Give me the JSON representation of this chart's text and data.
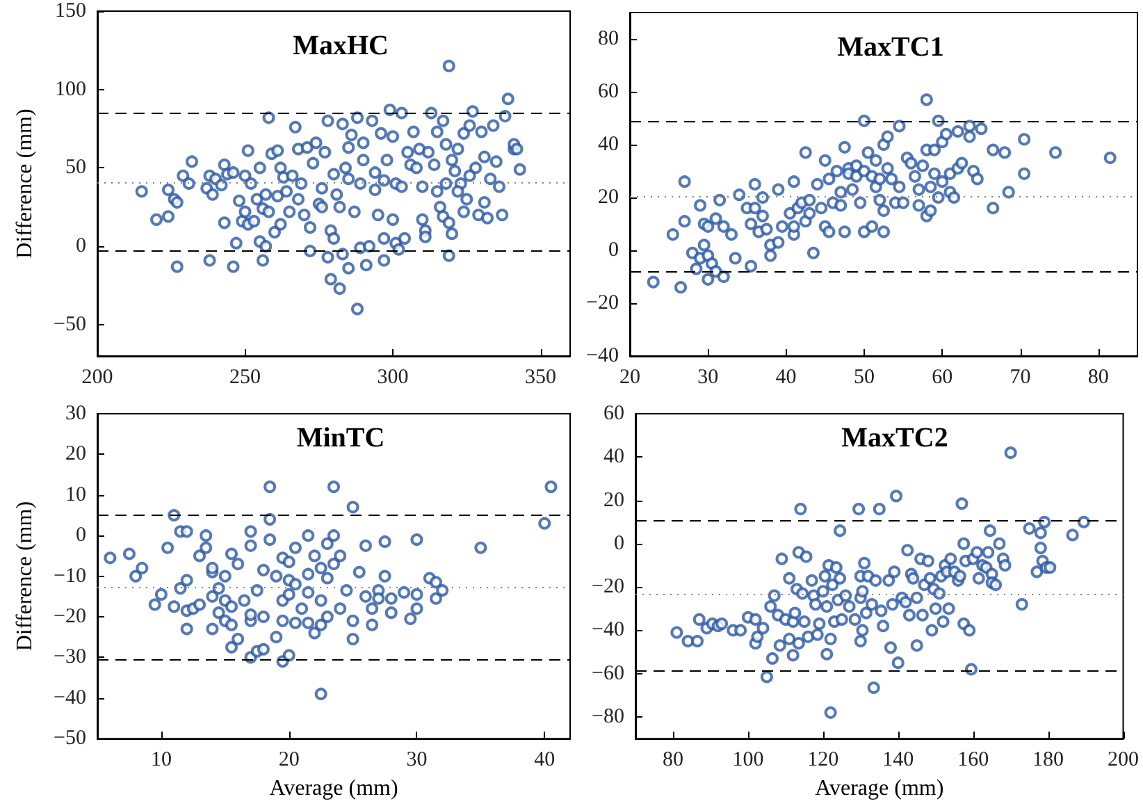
{
  "chart_data": [
    {
      "type": "scatter",
      "title": "MaxHC",
      "ylabel": "Difference (mm)",
      "marker": "circle",
      "grid": false,
      "xlim": [
        200,
        360
      ],
      "xticks": [
        200,
        250,
        300,
        350
      ],
      "ylim": [
        -70,
        150
      ],
      "yticks": [
        -50,
        0,
        50,
        100,
        150
      ],
      "ref_lines": [
        {
          "axis": "y",
          "value": 85,
          "line_style": "dashed",
          "color": "#000000"
        },
        {
          "axis": "y",
          "value": 41,
          "line_style": "dotted",
          "color": "#808080"
        },
        {
          "axis": "y",
          "value": -3,
          "line_style": "dashed",
          "color": "#000000"
        }
      ],
      "series": [
        {
          "color": "#2957a4",
          "x": [
            215,
            220,
            224,
            224,
            226,
            227,
            227,
            229,
            231,
            232,
            237,
            238,
            238,
            239,
            240,
            242,
            243,
            243,
            244,
            246,
            246,
            247,
            248,
            249,
            250,
            250,
            251,
            251,
            252,
            253,
            254,
            255,
            255,
            256,
            256,
            257,
            257,
            258,
            258,
            259,
            260,
            261,
            261,
            262,
            262,
            263,
            264,
            265,
            266,
            267,
            268,
            269,
            270,
            271,
            272,
            272,
            273,
            274,
            275,
            276,
            277,
            278,
            278,
            279,
            279,
            280,
            280,
            281,
            282,
            282,
            283,
            283,
            284,
            285,
            285,
            286,
            287,
            288,
            288,
            289,
            289,
            290,
            290,
            291,
            292,
            293,
            294,
            294,
            295,
            296,
            297,
            297,
            298,
            299,
            300,
            300,
            301,
            301,
            302,
            303,
            303,
            304,
            305,
            306,
            307,
            308,
            309,
            310,
            310,
            311,
            311,
            312,
            313,
            314,
            315,
            315,
            316,
            317,
            317,
            318,
            318,
            319,
            319,
            319,
            320,
            320,
            321,
            322,
            323,
            324,
            324,
            325,
            326,
            327,
            328,
            329,
            330,
            331,
            331,
            332,
            333,
            334,
            335,
            336,
            337,
            338,
            339,
            341,
            341,
            342,
            343,
            326,
            322,
            297,
            285,
            276,
            268
          ],
          "values": [
            35,
            17,
            19,
            36,
            30,
            -13,
            28,
            45,
            40,
            54,
            37,
            45,
            -9,
            33,
            43,
            39,
            52,
            15,
            46,
            47,
            -13,
            2,
            29,
            16,
            22,
            45,
            14,
            61,
            40,
            16,
            30,
            50,
            3,
            -9,
            24,
            33,
            0,
            82,
            22,
            59,
            9,
            32,
            61,
            50,
            14,
            44,
            35,
            22,
            45,
            76,
            62,
            40,
            20,
            63,
            12,
            -3,
            53,
            66,
            27,
            37,
            60,
            80,
            -7,
            -21,
            10,
            46,
            5,
            33,
            25,
            -27,
            78,
            -5,
            50,
            63,
            -14,
            71,
            22,
            82,
            -40,
            -1,
            40,
            55,
            66,
            -12,
            0,
            80,
            47,
            36,
            20,
            72,
            5,
            -9,
            55,
            87,
            17,
            70,
            2,
            40,
            -2,
            38,
            85,
            5,
            60,
            52,
            73,
            50,
            62,
            38,
            17,
            10,
            6,
            60,
            85,
            52,
            35,
            73,
            25,
            80,
            19,
            40,
            65,
            15,
            -6,
            115,
            8,
            55,
            48,
            62,
            40,
            72,
            22,
            30,
            77,
            86,
            50,
            20,
            73,
            57,
            28,
            18,
            43,
            77,
            54,
            38,
            20,
            83,
            94,
            62,
            65,
            62,
            49,
            45,
            35,
            42,
            43,
            25,
            30
          ]
        }
      ]
    },
    {
      "type": "scatter",
      "title": "MaxTC1",
      "marker": "circle",
      "grid": false,
      "xlim": [
        20,
        85
      ],
      "xticks": [
        20,
        30,
        40,
        50,
        60,
        70,
        80
      ],
      "ylim": [
        -40,
        90
      ],
      "yticks": [
        -40,
        -20,
        0,
        20,
        40,
        60,
        80
      ],
      "ref_lines": [
        {
          "axis": "y",
          "value": 49,
          "line_style": "dashed",
          "color": "#000000"
        },
        {
          "axis": "y",
          "value": 20.5,
          "line_style": "dotted",
          "color": "#808080"
        },
        {
          "axis": "y",
          "value": -8,
          "line_style": "dashed",
          "color": "#000000"
        }
      ],
      "series": [
        {
          "color": "#2957a4",
          "x": [
            23,
            25.5,
            26.5,
            27,
            27,
            28,
            28.5,
            29,
            29,
            29.5,
            29.5,
            30,
            30,
            30,
            30.5,
            31,
            31,
            31.5,
            32,
            32,
            33,
            33.5,
            34,
            35,
            35.5,
            35.5,
            36,
            36,
            36.5,
            37,
            37,
            37.5,
            38,
            38,
            39,
            39,
            39.5,
            40.5,
            41,
            41,
            41,
            41.5,
            42,
            42.5,
            42.5,
            43,
            43,
            43.5,
            44,
            44.5,
            45,
            45,
            45.5,
            45.5,
            46,
            46.5,
            47,
            47,
            47.5,
            47.5,
            48,
            48,
            48.5,
            49,
            49,
            49.5,
            50,
            50,
            50,
            50.5,
            51,
            51,
            51.5,
            51.5,
            52,
            52,
            52.5,
            52.5,
            52.5,
            53,
            53,
            53.5,
            54,
            54.5,
            54.5,
            55,
            55.5,
            56,
            56.5,
            57,
            57,
            57.5,
            58,
            58,
            58,
            58.5,
            58.5,
            59,
            59,
            59.5,
            59.5,
            60,
            60,
            60.5,
            61,
            61,
            61.5,
            62,
            62,
            62.5,
            63.5,
            63.5,
            64,
            64.5,
            65,
            66.5,
            66.5,
            68,
            68.5,
            70.5,
            70.5,
            74.5,
            81.5
          ],
          "values": [
            -12,
            6,
            -14,
            11,
            26,
            -1,
            -7,
            17,
            -3,
            2,
            10,
            -11,
            9,
            -2,
            -5,
            12,
            -8,
            19,
            9,
            -10,
            6,
            -3,
            21,
            16,
            -6,
            10,
            25,
            16,
            7,
            20,
            13,
            8,
            -2,
            2,
            3,
            23,
            9,
            14,
            6,
            26,
            9,
            16,
            18,
            11,
            37,
            14,
            19,
            -1,
            25,
            16,
            34,
            9,
            7,
            27,
            18,
            30,
            22,
            17,
            39,
            7,
            31,
            29,
            23,
            32,
            28,
            18,
            30,
            7,
            49,
            37,
            28,
            9,
            24,
            34,
            27,
            19,
            40,
            15,
            7,
            43,
            31,
            27,
            18,
            24,
            47,
            18,
            35,
            33,
            28,
            17,
            23,
            32,
            13,
            57,
            38,
            24,
            15,
            29,
            38,
            49,
            20,
            41,
            26,
            44,
            29,
            22,
            20,
            31,
            45,
            33,
            47,
            43,
            30,
            27,
            46,
            38,
            16,
            37,
            22,
            42,
            29,
            37,
            35
          ]
        }
      ]
    },
    {
      "type": "scatter",
      "title": "MinTC",
      "xlabel": "Average (mm)",
      "ylabel": "Difference (mm)",
      "marker": "circle",
      "grid": false,
      "xlim": [
        5,
        42
      ],
      "xticks": [
        10,
        20,
        30,
        40
      ],
      "ylim": [
        -50,
        30
      ],
      "yticks": [
        -50,
        -40,
        -30,
        -20,
        -10,
        0,
        10,
        20,
        30
      ],
      "ref_lines": [
        {
          "axis": "y",
          "value": 5,
          "line_style": "dashed",
          "color": "#000000"
        },
        {
          "axis": "y",
          "value": -12.8,
          "line_style": "dotted",
          "color": "#808080"
        },
        {
          "axis": "y",
          "value": -30.5,
          "line_style": "dashed",
          "color": "#000000"
        }
      ],
      "series": [
        {
          "color": "#2957a4",
          "x": [
            6,
            7.5,
            8,
            8.5,
            9.5,
            10,
            10.5,
            11,
            11,
            11.5,
            11.5,
            12,
            12,
            12,
            12,
            12.5,
            13,
            13,
            13.5,
            13.5,
            14,
            14,
            14,
            14,
            14.5,
            14.5,
            15,
            15,
            15,
            15.5,
            15.5,
            15.5,
            15.5,
            16,
            16,
            16.5,
            17,
            17,
            17,
            17,
            17,
            17.5,
            17.5,
            18,
            18,
            18,
            18.5,
            18.5,
            18.5,
            19,
            19,
            19.5,
            19.5,
            19.5,
            19.5,
            20,
            20,
            20,
            20,
            20.5,
            20.5,
            20.5,
            21,
            21.5,
            21.5,
            21.5,
            21.5,
            22,
            22,
            22.5,
            22.5,
            22.5,
            22.5,
            23,
            23,
            23,
            23.5,
            23.5,
            23.5,
            24,
            24,
            24.5,
            25,
            25,
            25,
            25.5,
            26,
            26,
            26.5,
            26.5,
            27,
            27,
            27.5,
            27.5,
            28,
            28,
            29,
            29.5,
            30,
            30,
            30,
            31,
            31.5,
            31.5,
            32,
            35,
            40,
            40.5
          ],
          "values": [
            -5.5,
            -4.5,
            -10,
            -8,
            -17,
            -14.5,
            -3,
            -17.5,
            5,
            1,
            -13,
            -11,
            1,
            -18.5,
            -23,
            -18,
            -17,
            -5,
            0,
            -3,
            -9,
            -15,
            -23,
            -8,
            -13,
            -19,
            -16,
            -10,
            -21,
            -27.5,
            -22,
            -17.5,
            -4.5,
            -25.5,
            -7,
            -16,
            -21,
            -2.5,
            1,
            -19.5,
            -30,
            -13.5,
            -28.5,
            -28,
            -20,
            -8.5,
            12,
            4,
            -1,
            -10,
            -25,
            -5.5,
            -16,
            -21,
            -31,
            -11,
            -6.5,
            -14.5,
            -29.5,
            -21.5,
            -3,
            -12,
            -18,
            0,
            -9.5,
            -21.5,
            -14,
            -5,
            -24,
            -16,
            -8,
            -22,
            -39,
            -2,
            -20,
            -10.5,
            0,
            -7,
            12,
            -18,
            -5,
            -13.5,
            -21,
            -25.5,
            7,
            -9,
            -15,
            -2.5,
            -18,
            -22,
            -13.5,
            -15.5,
            -10,
            -1.5,
            -19,
            -15.5,
            -14,
            -20.5,
            -14.5,
            -1,
            -18,
            -10.5,
            -15.5,
            -11.5,
            -13.5,
            -3,
            3,
            12
          ]
        }
      ]
    },
    {
      "type": "scatter",
      "title": "MaxTC2",
      "xlabel": "Average (mm)",
      "marker": "circle",
      "grid": false,
      "xlim": [
        70,
        200
      ],
      "xticks": [
        80,
        100,
        120,
        140,
        160,
        180,
        200
      ],
      "ylim": [
        -90,
        60
      ],
      "yticks": [
        -80,
        -60,
        -40,
        -20,
        0,
        20,
        40,
        60
      ],
      "ref_lines": [
        {
          "axis": "y",
          "value": 11,
          "line_style": "dashed",
          "color": "#000000"
        },
        {
          "axis": "y",
          "value": -23.5,
          "line_style": "dotted",
          "color": "#808080"
        },
        {
          "axis": "y",
          "value": -58.5,
          "line_style": "dashed",
          "color": "#000000"
        }
      ],
      "series": [
        {
          "color": "#2957a4",
          "x": [
            81,
            84,
            86.5,
            87,
            89,
            90.5,
            92,
            93,
            96,
            98,
            100,
            102,
            102,
            102.5,
            104,
            105,
            106,
            106.5,
            107,
            108,
            108.5,
            109,
            110,
            111,
            111,
            112,
            112,
            112.5,
            113,
            113.5,
            113.5,
            114,
            114.5,
            115,
            115.5,
            116,
            117,
            117.5,
            118,
            118.5,
            119,
            120,
            120.5,
            121,
            121,
            121.5,
            122,
            122,
            122.5,
            123,
            123.5,
            124,
            124.5,
            124.5,
            125,
            126,
            127,
            128.5,
            129.5,
            130,
            130,
            130,
            130.5,
            130.5,
            131,
            131.5,
            132,
            133,
            133.5,
            134,
            135,
            135.5,
            136,
            137.5,
            138,
            138.5,
            139,
            139.5,
            140,
            141,
            142,
            142.5,
            143,
            143.5,
            144,
            145,
            145,
            146,
            146.5,
            147,
            148,
            148.5,
            149,
            149.5,
            150,
            151,
            151.5,
            152,
            152.5,
            153,
            153.5,
            154,
            155,
            156,
            156.5,
            157,
            157.5,
            157.5,
            158,
            159,
            159.5,
            160,
            161,
            161.5,
            162.5,
            163.5,
            164,
            164.5,
            165,
            165,
            166,
            167,
            168,
            168.5,
            170,
            173,
            175,
            177,
            178,
            178,
            178.5,
            179,
            179.5,
            180.5,
            186.5,
            189.5
          ],
          "values": [
            -41,
            -45,
            -45,
            -35,
            -39,
            -37,
            -38,
            -37,
            -40,
            -40,
            -34,
            -35,
            -46,
            -43,
            -39,
            -61.5,
            -29,
            -53,
            -24,
            -33,
            -47,
            -7,
            -35,
            -16,
            -44,
            -51.5,
            -36,
            -32,
            -21,
            -4,
            -46,
            16,
            -23,
            -36,
            -6,
            -43,
            -17,
            -24,
            -28,
            -42,
            -37,
            -22,
            -15,
            -51,
            -29,
            -10,
            -78,
            -44,
            -19,
            -36,
            -11,
            -26,
            6,
            -16,
            -35,
            -24,
            -29,
            -35,
            16,
            -15,
            -25,
            -45,
            -22,
            -40,
            -9,
            -32,
            -15,
            -28,
            -66.5,
            -17,
            16,
            -31,
            -38,
            -17,
            -48,
            -28,
            -13,
            22,
            -55,
            -25,
            -27,
            -3,
            -33,
            -14,
            -16,
            -47,
            -25,
            -7,
            -33,
            -19,
            -8,
            -16,
            -40,
            -21,
            -30,
            -23,
            -15,
            -36,
            -10,
            -13,
            -30,
            -7,
            -13,
            -17,
            -15,
            18.5,
            0,
            -37,
            -8,
            -40,
            -58,
            -7,
            -4,
            -16,
            -10,
            -11,
            -4,
            6,
            -14,
            -18,
            -19,
            0,
            -7,
            -10,
            42,
            -28,
            7,
            -13,
            5,
            -2,
            -8,
            10,
            -11,
            -11,
            4,
            10
          ]
        }
      ]
    }
  ]
}
